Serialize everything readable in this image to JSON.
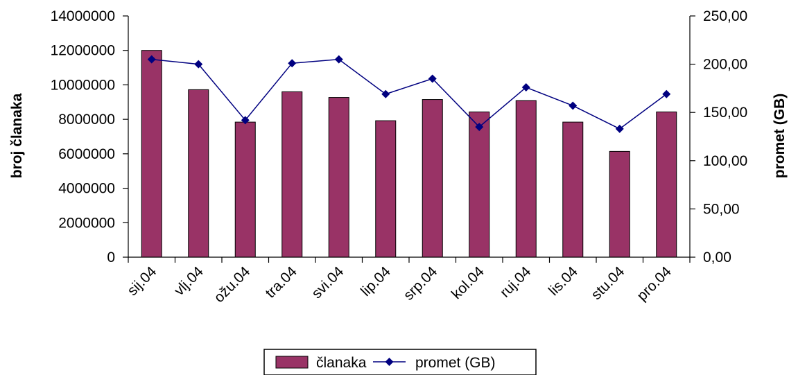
{
  "colors": {
    "bar": "#993366",
    "line": "#000080",
    "axis": "#000000"
  },
  "chart_data": {
    "type": "bar",
    "categories": [
      "sij.04",
      "vlj.04",
      "ožu.04",
      "tra.04",
      "svi.04",
      "lip.04",
      "srp.04",
      "kol.04",
      "ruj.04",
      "lis.04",
      "stu.04",
      "pro.04"
    ],
    "series": [
      {
        "name": "članaka",
        "type": "bar",
        "axis": "left",
        "values": [
          12000000,
          9720000,
          7840000,
          9600000,
          9270000,
          7920000,
          9150000,
          8430000,
          9090000,
          7840000,
          6140000,
          8430000
        ]
      },
      {
        "name": "promet (GB)",
        "type": "line",
        "marker": "diamond",
        "axis": "right",
        "values": [
          205.0,
          200.0,
          142.0,
          201.0,
          205.0,
          169.0,
          185.0,
          135.0,
          176.0,
          157.0,
          133.0,
          169.0
        ]
      }
    ],
    "ylabel": "broj članaka",
    "y2label": "promet (GB)",
    "ylim": [
      0,
      14000000
    ],
    "y2lim": [
      0,
      250
    ],
    "yticks": [
      "0",
      "2000000",
      "4000000",
      "6000000",
      "8000000",
      "10000000",
      "12000000",
      "14000000"
    ],
    "y2ticks": [
      "0,00",
      "50,00",
      "100,00",
      "150,00",
      "200,00",
      "250,00"
    ],
    "grid": false,
    "legend": "bottom"
  }
}
